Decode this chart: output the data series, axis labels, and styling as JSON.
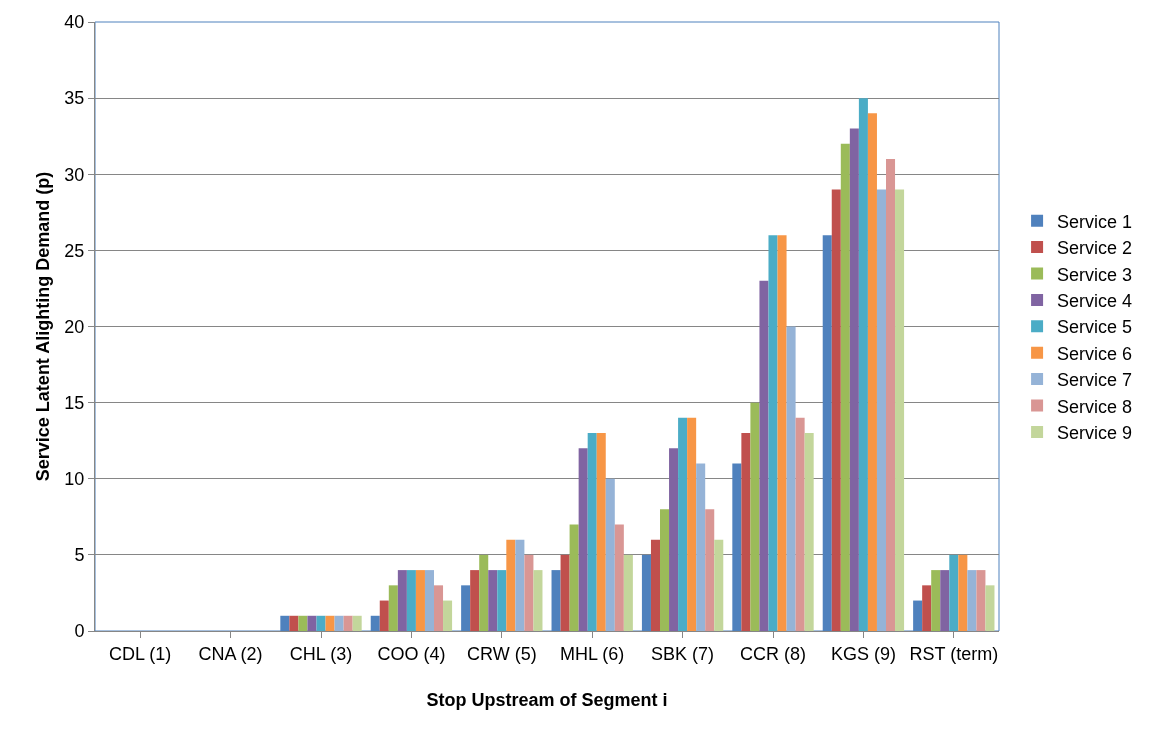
{
  "chart_data": {
    "type": "bar",
    "xlabel": "Stop Upstream of Segment i",
    "ylabel": "Service Latent Alighting Demand (p)",
    "categories": [
      "CDL (1)",
      "CNA (2)",
      "CHL (3)",
      "COO (4)",
      "CRW (5)",
      "MHL (6)",
      "SBK (7)",
      "CCR (8)",
      "KGS (9)",
      "RST (term)"
    ],
    "series": [
      {
        "name": "Service 1",
        "color": "#4f81bd",
        "values": [
          0,
          0,
          1,
          1,
          3,
          4,
          5,
          11,
          26,
          2
        ]
      },
      {
        "name": "Service 2",
        "color": "#c0504d",
        "values": [
          0,
          0,
          1,
          2,
          4,
          5,
          6,
          13,
          29,
          3
        ]
      },
      {
        "name": "Service 3",
        "color": "#9bbb59",
        "values": [
          0,
          0,
          1,
          3,
          5,
          7,
          8,
          15,
          32,
          4
        ]
      },
      {
        "name": "Service 4",
        "color": "#8064a2",
        "values": [
          0,
          0,
          1,
          4,
          4,
          12,
          12,
          23,
          33,
          4
        ]
      },
      {
        "name": "Service 5",
        "color": "#4bacc6",
        "values": [
          0,
          0,
          1,
          4,
          4,
          13,
          14,
          26,
          35,
          5
        ]
      },
      {
        "name": "Service 6",
        "color": "#f79646",
        "values": [
          0,
          0,
          1,
          4,
          6,
          13,
          14,
          26,
          34,
          5
        ]
      },
      {
        "name": "Service 7",
        "color": "#95b3d7",
        "values": [
          0,
          0,
          1,
          4,
          6,
          10,
          11,
          20,
          29,
          4
        ]
      },
      {
        "name": "Service 8",
        "color": "#d99694",
        "values": [
          0,
          0,
          1,
          3,
          5,
          7,
          8,
          14,
          31,
          4
        ]
      },
      {
        "name": "Service 9",
        "color": "#c3d69b",
        "values": [
          0,
          0,
          1,
          2,
          4,
          5,
          6,
          13,
          29,
          3
        ]
      }
    ],
    "ylim": [
      0,
      40
    ],
    "yticks": [
      0,
      5,
      10,
      15,
      20,
      25,
      30,
      35,
      40
    ],
    "grid": "y",
    "legend": "right"
  }
}
